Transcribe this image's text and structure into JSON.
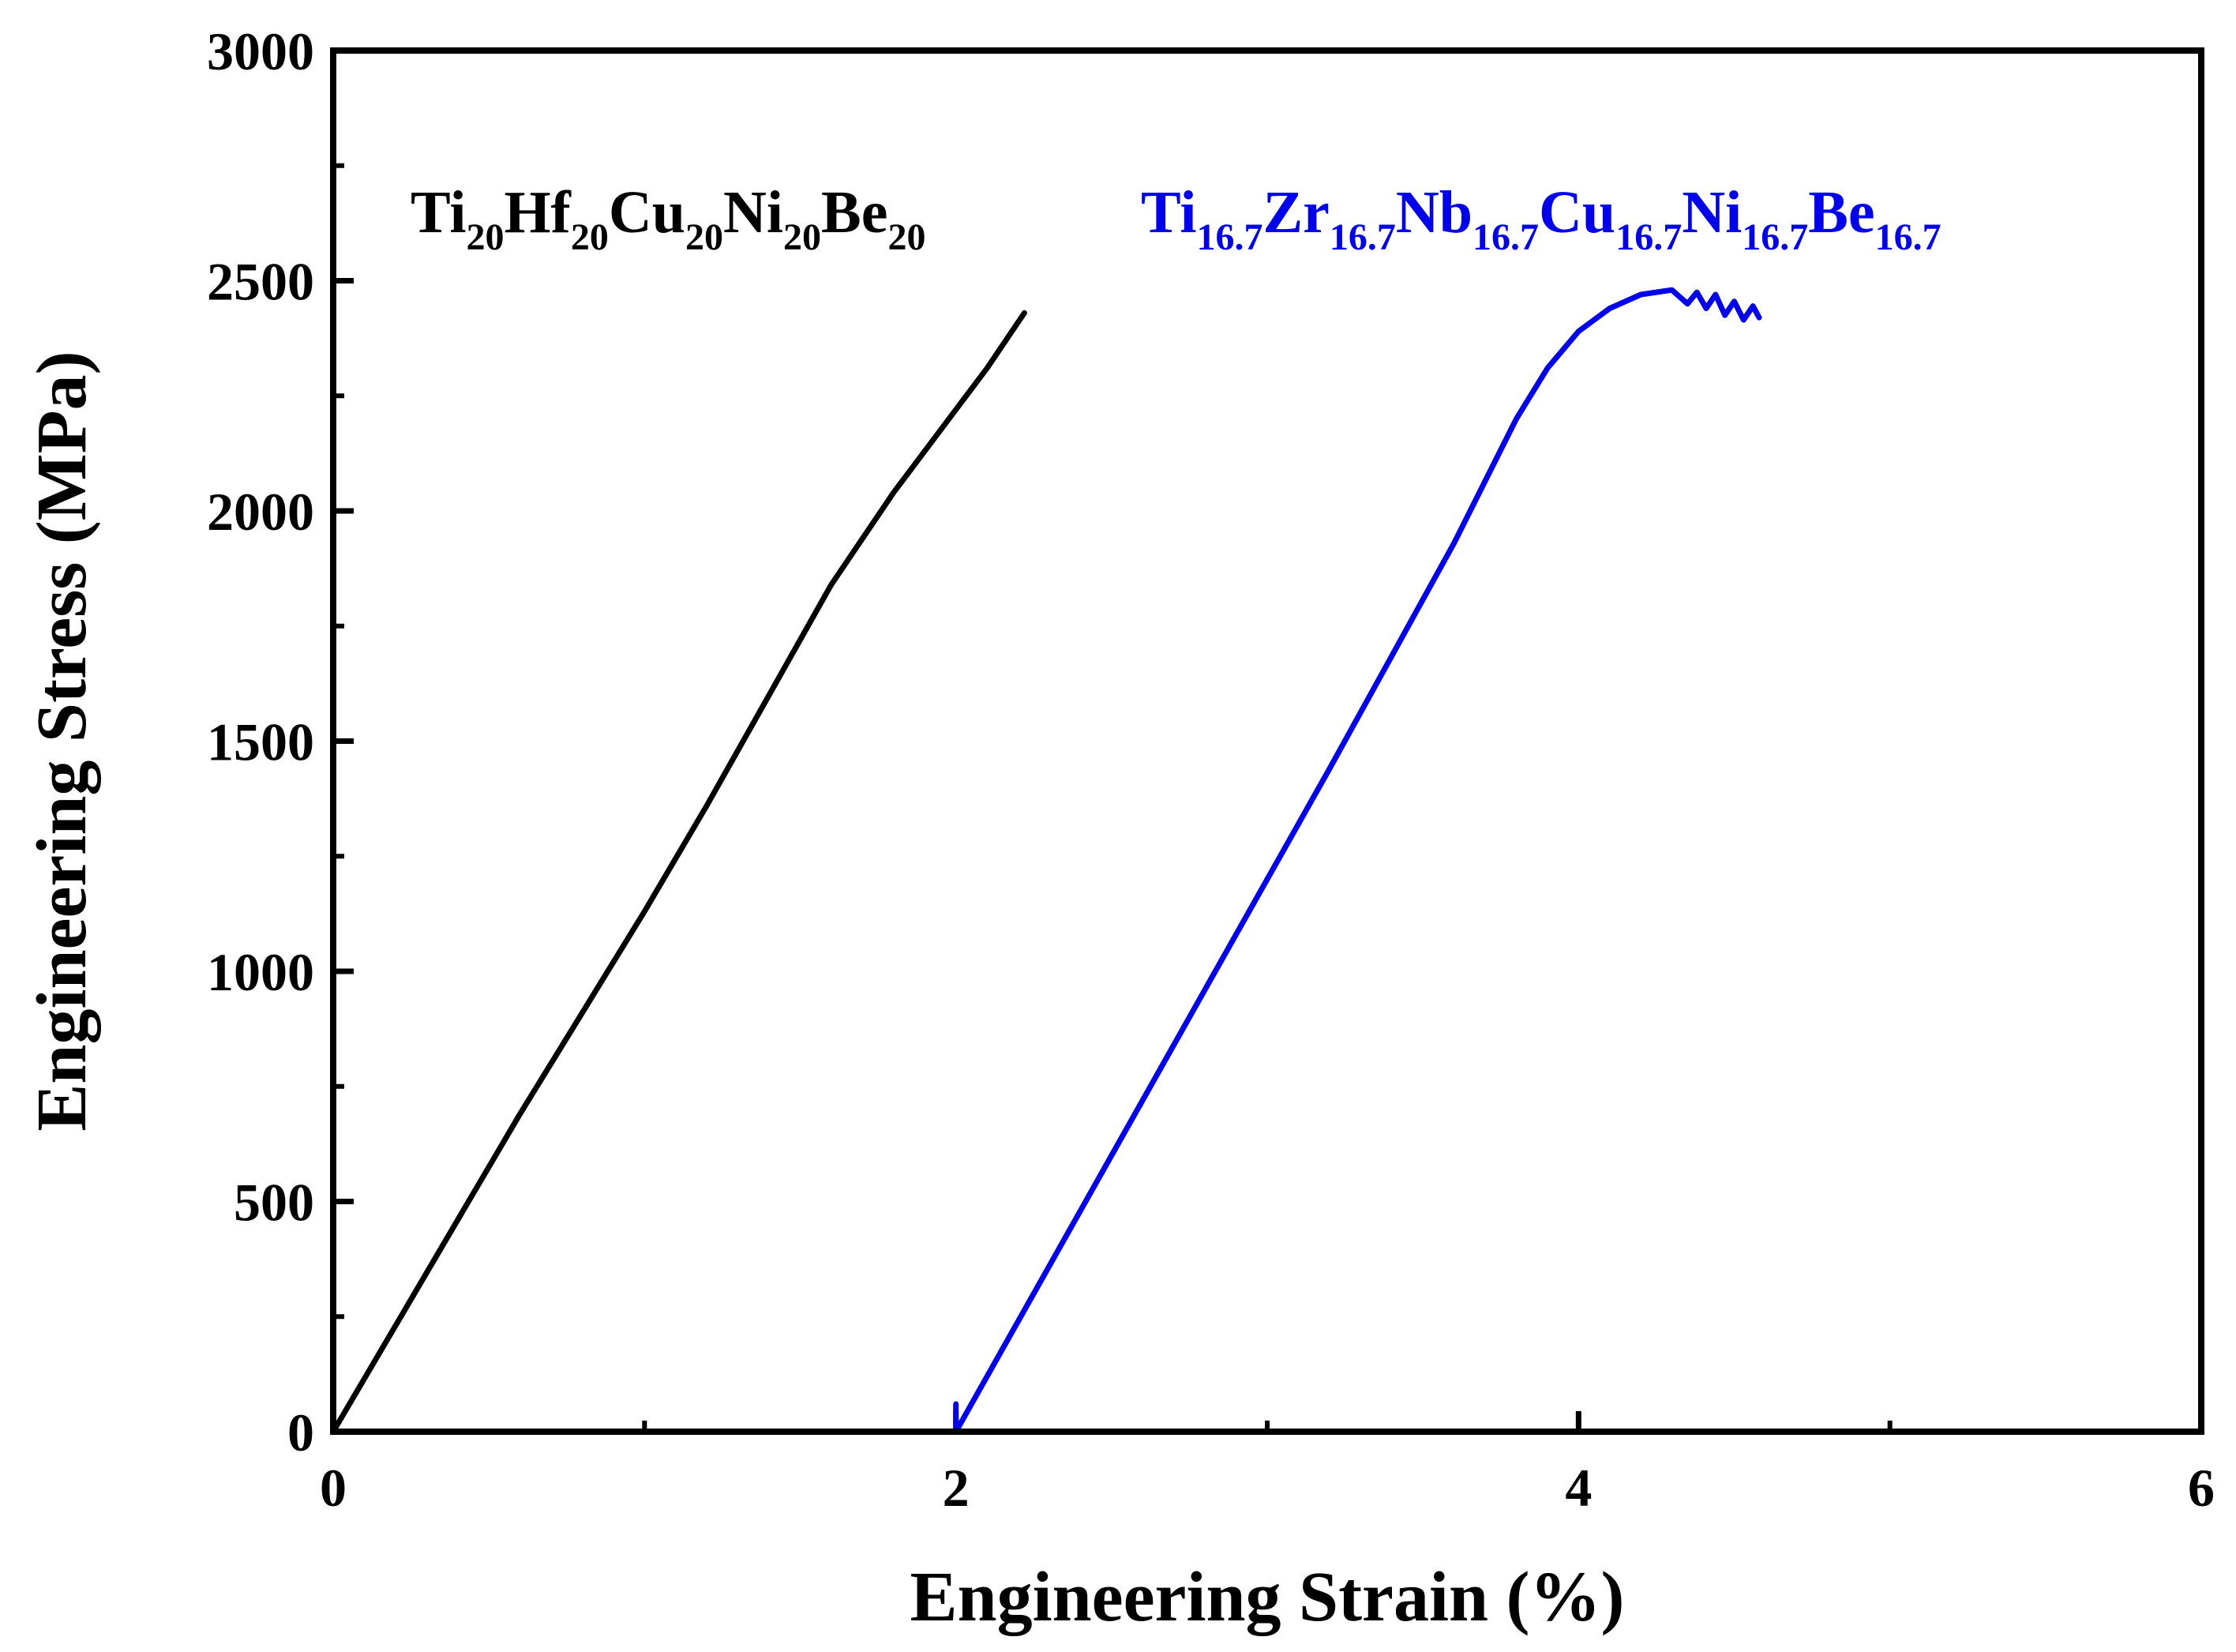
{
  "chart_data": {
    "type": "line",
    "xlabel": "Engineering Strain (%)",
    "ylabel": "Engineering Stress (MPa)",
    "xlim": [
      0,
      6
    ],
    "ylim": [
      0,
      3000
    ],
    "x_ticks": [
      "0",
      "2",
      "4",
      "6"
    ],
    "y_ticks": [
      "0",
      "500",
      "1000",
      "1500",
      "2000",
      "2500",
      "3000"
    ],
    "x_tick_values": [
      0,
      2,
      4,
      6
    ],
    "y_tick_values": [
      0,
      500,
      1000,
      1500,
      2000,
      2500,
      3000
    ],
    "x_minor_ticks": [
      1,
      3,
      5
    ],
    "y_minor_ticks": [
      250,
      750,
      1250,
      1750,
      2250,
      2750
    ],
    "grid": false,
    "legend": "none",
    "series": [
      {
        "name": "Ti20Hf20Cu20Ni20Be20",
        "label_parts": [
          {
            "text": "Ti"
          },
          {
            "text": "20",
            "sub": true
          },
          {
            "text": "Hf"
          },
          {
            "text": "20",
            "sub": true
          },
          {
            "text": "Cu"
          },
          {
            "text": "20",
            "sub": true
          },
          {
            "text": "Ni"
          },
          {
            "text": "20",
            "sub": true
          },
          {
            "text": "Be"
          },
          {
            "text": "20",
            "sub": true
          }
        ],
        "color": "#000000",
        "x": [
          0,
          0.2,
          0.4,
          0.6,
          0.8,
          1.0,
          1.2,
          1.4,
          1.6,
          1.8,
          2.0,
          2.1,
          2.22
        ],
        "y": [
          0,
          230,
          460,
          690,
          910,
          1130,
          1360,
          1600,
          1840,
          2040,
          2220,
          2310,
          2430
        ]
      },
      {
        "name": "Ti16.7Zr16.7Nb16.7Cu16.7Ni16.7Be16.7",
        "label_parts": [
          {
            "text": "Ti"
          },
          {
            "text": "16.7",
            "sub": true
          },
          {
            "text": "Zr"
          },
          {
            "text": "16.7",
            "sub": true
          },
          {
            "text": "Nb"
          },
          {
            "text": "16.7",
            "sub": true
          },
          {
            "text": "Cu"
          },
          {
            "text": "16.7",
            "sub": true
          },
          {
            "text": "Ni"
          },
          {
            "text": "16.7",
            "sub": true
          },
          {
            "text": "Be"
          },
          {
            "text": "16.7",
            "sub": true
          }
        ],
        "color": "#0000ee",
        "x": [
          2.0,
          2.0,
          2.4,
          2.8,
          3.2,
          3.6,
          3.8,
          3.9,
          4.0,
          4.1,
          4.2,
          4.3,
          4.35,
          4.38,
          4.41,
          4.44,
          4.47,
          4.5,
          4.53,
          4.56,
          4.58
        ],
        "y": [
          60,
          0,
          480,
          960,
          1440,
          1930,
          2200,
          2310,
          2390,
          2440,
          2470,
          2480,
          2450,
          2475,
          2440,
          2470,
          2425,
          2455,
          2415,
          2445,
          2420
        ]
      }
    ]
  }
}
